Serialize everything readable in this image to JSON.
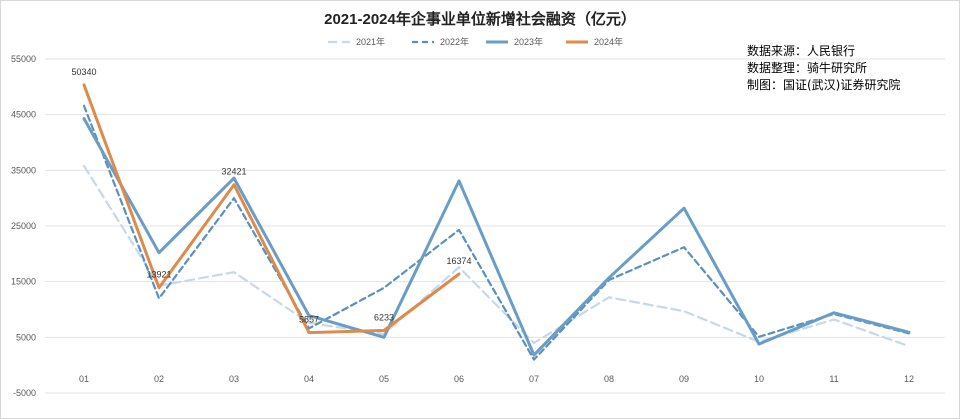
{
  "chart_data": {
    "type": "line",
    "title": "2021-2024年企事业单位新增社会融资（亿元）",
    "categories": [
      "01",
      "02",
      "03",
      "04",
      "05",
      "06",
      "07",
      "08",
      "09",
      "10",
      "11",
      "12"
    ],
    "ylim": [
      -5000,
      55000
    ],
    "yticks": [
      -5000,
      5000,
      15000,
      25000,
      35000,
      45000,
      55000
    ],
    "ytick_labels": [
      "-5000",
      "5000",
      "15000",
      "25000",
      "35000",
      "45000",
      "55000"
    ],
    "grid": true,
    "legend_position": "top",
    "series": [
      {
        "name": "2021年",
        "color": "#c5d9e8",
        "dash": "dashed-light",
        "values": [
          35800,
          14300,
          16700,
          7600,
          5600,
          17600,
          4000,
          12200,
          9700,
          4200,
          8200,
          3400
        ]
      },
      {
        "name": "2022年",
        "color": "#5b8fbd",
        "dash": "dashed",
        "values": [
          46600,
          12000,
          30000,
          6600,
          13900,
          24300,
          1000,
          15300,
          21200,
          5100,
          9200,
          5700
        ]
      },
      {
        "name": "2023年",
        "color": "#6a9dc6",
        "dash": "solid",
        "values": [
          44300,
          20200,
          33600,
          8900,
          5000,
          33100,
          1800,
          15700,
          28200,
          3800,
          9400,
          5900
        ]
      },
      {
        "name": "2024年",
        "color": "#de8a4b",
        "dash": "solid",
        "values": [
          50340,
          13921,
          32421,
          5857,
          6233,
          16374,
          null,
          null,
          null,
          null,
          null,
          null
        ],
        "data_labels": [
          "50340",
          "13921",
          "32421",
          "5857",
          "6233",
          "16374"
        ]
      }
    ]
  },
  "notes": {
    "line1": "数据来源：人民银行",
    "line2": "数据整理：骑牛研究所",
    "line3": "制图：国证(武汉)证券研究院"
  }
}
